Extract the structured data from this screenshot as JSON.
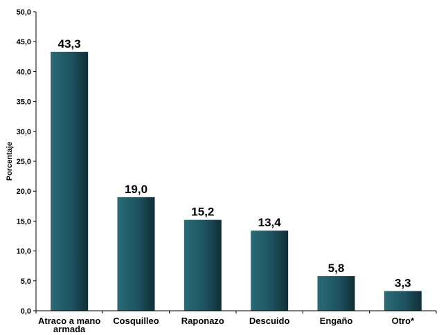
{
  "chart_data": {
    "type": "bar",
    "title": "",
    "xlabel": "",
    "ylabel": "Porcentaje",
    "categories": [
      "Atraco a mano armada",
      "Cosquilleo",
      "Raponazo",
      "Descuido",
      "Engaño",
      "Otro*"
    ],
    "values": [
      43.3,
      19.0,
      15.2,
      13.4,
      5.8,
      3.3
    ],
    "value_labels": [
      "43,3",
      "19,0",
      "15,2",
      "13,4",
      "5,8",
      "3,3"
    ],
    "ylim": [
      0,
      50
    ],
    "yticks": [
      0,
      5,
      10,
      15,
      20,
      25,
      30,
      35,
      40,
      45,
      50
    ],
    "ytick_labels": [
      "0,0",
      "5,0",
      "10,0",
      "15,0",
      "20,0",
      "25,0",
      "30,0",
      "35,0",
      "40,0",
      "45,0",
      "50,0"
    ],
    "grid": false,
    "legend": "none",
    "colors": {
      "bar_light": "#2a6b78",
      "bar_dark": "#0f2f38",
      "axis": "#000000"
    }
  }
}
